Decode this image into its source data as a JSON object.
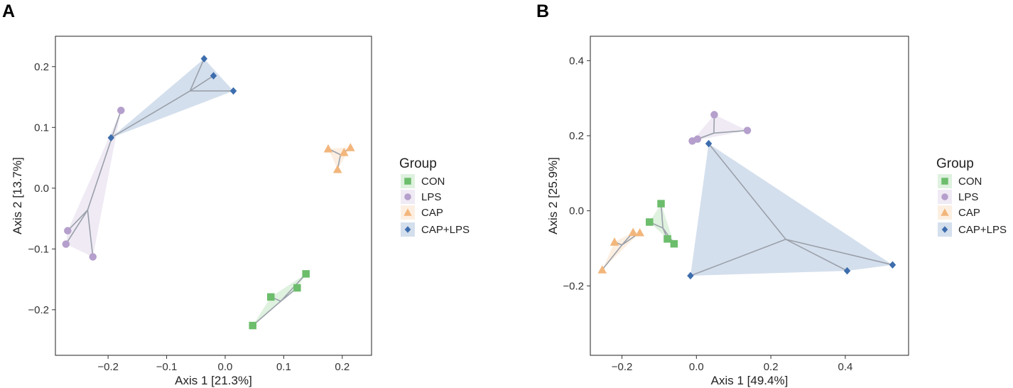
{
  "colors": {
    "CON": "#6cbd6c",
    "LPS": "#b59fcc",
    "CAP": "#f2b67c",
    "CAP+LPS": "#3d6dad",
    "spider": "#9aa0aa",
    "frame": "#222222"
  },
  "chart_data": [
    {
      "type": "scatter",
      "panel_label": "A",
      "xlabel": "Axis 1 [21.3%]",
      "ylabel": "Axis 2 [13.7%]",
      "xlim": [
        -0.29,
        0.25
      ],
      "ylim": [
        -0.275,
        0.25
      ],
      "xticks": [
        -0.2,
        -0.1,
        0.0,
        0.1,
        0.2
      ],
      "xtick_labels": [
        "−0.2",
        "−0.1",
        "0.0",
        "0.1",
        "0.2"
      ],
      "yticks": [
        -0.2,
        -0.1,
        0.0,
        0.1,
        0.2
      ],
      "ytick_labels": [
        "−0.2",
        "−0.1",
        "0.0",
        "0.1",
        "0.2"
      ],
      "legend_title": "Group",
      "legend_labels": [
        "CON",
        "LPS",
        "CAP",
        "CAP+LPS"
      ],
      "grid": false,
      "series": [
        {
          "name": "CON",
          "marker": "square",
          "centroid": [
            0.095,
            -0.186
          ],
          "points": [
            [
              0.047,
              -0.226
            ],
            [
              0.078,
              -0.179
            ],
            [
              0.123,
              -0.164
            ],
            [
              0.138,
              -0.141
            ]
          ]
        },
        {
          "name": "LPS",
          "marker": "circle",
          "centroid": [
            -0.235,
            -0.036
          ],
          "points": [
            [
              -0.178,
              0.128
            ],
            [
              -0.269,
              -0.07
            ],
            [
              -0.272,
              -0.092
            ],
            [
              -0.226,
              -0.113
            ]
          ]
        },
        {
          "name": "CAP",
          "marker": "triangle",
          "centroid": [
            0.197,
            0.055
          ],
          "points": [
            [
              0.176,
              0.065
            ],
            [
              0.214,
              0.067
            ],
            [
              0.203,
              0.059
            ],
            [
              0.192,
              0.031
            ]
          ]
        },
        {
          "name": "CAP+LPS",
          "marker": "diamond",
          "centroid": [
            -0.06,
            0.16
          ],
          "points": [
            [
              -0.036,
              0.213
            ],
            [
              -0.02,
              0.185
            ],
            [
              0.014,
              0.16
            ],
            [
              -0.195,
              0.083
            ]
          ]
        }
      ]
    },
    {
      "type": "scatter",
      "panel_label": "B",
      "xlabel": "Axis 1 [49.4%]",
      "ylabel": "Axis 2 [25.9%]",
      "xlim": [
        -0.285,
        0.57
      ],
      "ylim": [
        -0.385,
        0.465
      ],
      "xticks": [
        -0.2,
        0.0,
        0.2,
        0.4
      ],
      "xtick_labels": [
        "−0.2",
        "0.0",
        "0.2",
        "0.4"
      ],
      "yticks": [
        -0.2,
        0.0,
        0.2,
        0.4
      ],
      "ytick_labels": [
        "−0.2",
        "0.0",
        "0.2",
        "0.4"
      ],
      "legend_title": "Group",
      "legend_labels": [
        "CON",
        "LPS",
        "CAP",
        "CAP+LPS"
      ],
      "grid": false,
      "series": [
        {
          "name": "CON",
          "marker": "square",
          "centroid": [
            -0.09,
            -0.046
          ],
          "points": [
            [
              -0.095,
              0.019
            ],
            [
              -0.126,
              -0.03
            ],
            [
              -0.078,
              -0.075
            ],
            [
              -0.06,
              -0.088
            ]
          ]
        },
        {
          "name": "LPS",
          "marker": "circle",
          "centroid": [
            0.047,
            0.207
          ],
          "points": [
            [
              0.048,
              0.256
            ],
            [
              0.137,
              0.214
            ],
            [
              0.003,
              0.191
            ],
            [
              -0.011,
              0.186
            ]
          ]
        },
        {
          "name": "CAP",
          "marker": "triangle",
          "centroid": [
            -0.2,
            -0.091
          ],
          "points": [
            [
              -0.253,
              -0.157
            ],
            [
              -0.22,
              -0.083
            ],
            [
              -0.17,
              -0.057
            ],
            [
              -0.152,
              -0.058
            ]
          ]
        },
        {
          "name": "CAP+LPS",
          "marker": "diamond",
          "centroid": [
            0.24,
            -0.076
          ],
          "points": [
            [
              0.033,
              0.179
            ],
            [
              -0.016,
              -0.173
            ],
            [
              0.405,
              -0.16
            ],
            [
              0.527,
              -0.144
            ]
          ]
        }
      ]
    }
  ]
}
